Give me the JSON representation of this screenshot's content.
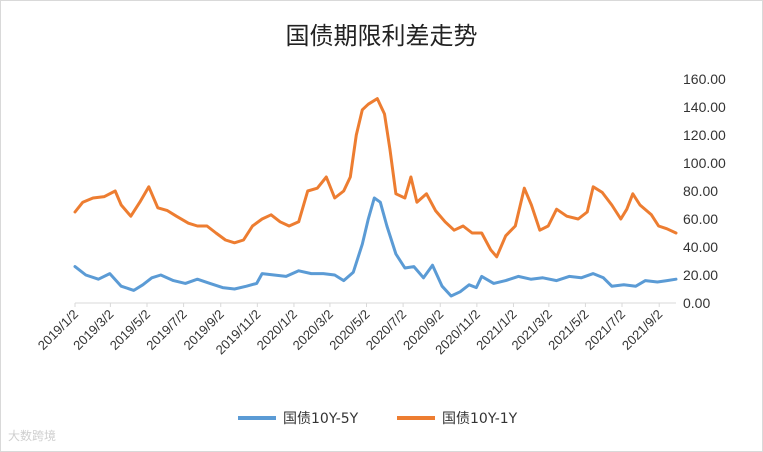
{
  "chart_data": {
    "type": "line",
    "title": "国债期限利差走势",
    "xlabel": "",
    "ylabel": "",
    "ylim": [
      0,
      160
    ],
    "y_ticks": [
      "0.00",
      "20.00",
      "40.00",
      "60.00",
      "80.00",
      "100.00",
      "120.00",
      "140.00",
      "160.00"
    ],
    "x_tick_labels": [
      "2019/1/2",
      "2019/3/2",
      "2019/5/2",
      "2019/7/2",
      "2019/9/2",
      "2019/11/2",
      "2020/1/2",
      "2020/3/2",
      "2020/5/2",
      "2020/7/2",
      "2020/9/2",
      "2020/11/2",
      "2021/1/2",
      "2021/3/2",
      "2021/5/2",
      "2021/7/2",
      "2021/9/2"
    ],
    "x_range": [
      "2019-01-02",
      "2021-09-30"
    ],
    "grid": false,
    "legend": "bottom",
    "series": [
      {
        "name": "国债10Y-5Y",
        "color": "#5b9bd5",
        "points": [
          [
            "2019-01-02",
            26
          ],
          [
            "2019-01-20",
            20
          ],
          [
            "2019-02-10",
            17
          ],
          [
            "2019-03-01",
            21
          ],
          [
            "2019-03-20",
            12
          ],
          [
            "2019-04-10",
            9
          ],
          [
            "2019-04-25",
            13
          ],
          [
            "2019-05-10",
            18
          ],
          [
            "2019-05-25",
            20
          ],
          [
            "2019-06-15",
            16
          ],
          [
            "2019-07-05",
            14
          ],
          [
            "2019-07-25",
            17
          ],
          [
            "2019-08-15",
            14
          ],
          [
            "2019-09-05",
            11
          ],
          [
            "2019-09-25",
            10
          ],
          [
            "2019-10-15",
            12
          ],
          [
            "2019-11-01",
            14
          ],
          [
            "2019-11-10",
            21
          ],
          [
            "2019-11-30",
            20
          ],
          [
            "2019-12-20",
            19
          ],
          [
            "2020-01-10",
            23
          ],
          [
            "2020-01-31",
            21
          ],
          [
            "2020-02-20",
            21
          ],
          [
            "2020-03-10",
            20
          ],
          [
            "2020-03-25",
            16
          ],
          [
            "2020-04-10",
            22
          ],
          [
            "2020-04-25",
            42
          ],
          [
            "2020-05-05",
            60
          ],
          [
            "2020-05-15",
            75
          ],
          [
            "2020-05-25",
            72
          ],
          [
            "2020-06-05",
            55
          ],
          [
            "2020-06-20",
            35
          ],
          [
            "2020-07-05",
            25
          ],
          [
            "2020-07-20",
            26
          ],
          [
            "2020-08-05",
            18
          ],
          [
            "2020-08-20",
            27
          ],
          [
            "2020-09-05",
            12
          ],
          [
            "2020-09-20",
            5
          ],
          [
            "2020-10-05",
            8
          ],
          [
            "2020-10-20",
            13
          ],
          [
            "2020-11-01",
            11
          ],
          [
            "2020-11-10",
            19
          ],
          [
            "2020-11-30",
            14
          ],
          [
            "2020-12-20",
            16
          ],
          [
            "2021-01-10",
            19
          ],
          [
            "2021-01-31",
            17
          ],
          [
            "2021-02-20",
            18
          ],
          [
            "2021-03-15",
            16
          ],
          [
            "2021-04-05",
            19
          ],
          [
            "2021-04-25",
            18
          ],
          [
            "2021-05-15",
            21
          ],
          [
            "2021-06-01",
            18
          ],
          [
            "2021-06-15",
            12
          ],
          [
            "2021-07-05",
            13
          ],
          [
            "2021-07-25",
            12
          ],
          [
            "2021-08-10",
            16
          ],
          [
            "2021-08-30",
            15
          ],
          [
            "2021-09-15",
            16
          ],
          [
            "2021-09-30",
            17
          ]
        ]
      },
      {
        "name": "国债10Y-1Y",
        "color": "#ed7d31",
        "points": [
          [
            "2019-01-02",
            65
          ],
          [
            "2019-01-15",
            72
          ],
          [
            "2019-02-01",
            75
          ],
          [
            "2019-02-20",
            76
          ],
          [
            "2019-03-10",
            80
          ],
          [
            "2019-03-20",
            70
          ],
          [
            "2019-04-05",
            62
          ],
          [
            "2019-04-20",
            72
          ],
          [
            "2019-05-05",
            83
          ],
          [
            "2019-05-20",
            68
          ],
          [
            "2019-06-05",
            66
          ],
          [
            "2019-06-20",
            62
          ],
          [
            "2019-07-10",
            57
          ],
          [
            "2019-07-25",
            55
          ],
          [
            "2019-08-10",
            55
          ],
          [
            "2019-08-25",
            50
          ],
          [
            "2019-09-10",
            45
          ],
          [
            "2019-09-25",
            43
          ],
          [
            "2019-10-10",
            45
          ],
          [
            "2019-10-25",
            55
          ],
          [
            "2019-11-10",
            60
          ],
          [
            "2019-11-25",
            63
          ],
          [
            "2019-12-10",
            58
          ],
          [
            "2019-12-25",
            55
          ],
          [
            "2020-01-10",
            58
          ],
          [
            "2020-01-25",
            80
          ],
          [
            "2020-02-10",
            82
          ],
          [
            "2020-02-25",
            90
          ],
          [
            "2020-03-10",
            75
          ],
          [
            "2020-03-25",
            80
          ],
          [
            "2020-04-05",
            90
          ],
          [
            "2020-04-15",
            120
          ],
          [
            "2020-04-25",
            138
          ],
          [
            "2020-05-05",
            142
          ],
          [
            "2020-05-20",
            146
          ],
          [
            "2020-06-01",
            135
          ],
          [
            "2020-06-10",
            110
          ],
          [
            "2020-06-20",
            78
          ],
          [
            "2020-07-05",
            75
          ],
          [
            "2020-07-15",
            90
          ],
          [
            "2020-07-25",
            72
          ],
          [
            "2020-08-10",
            78
          ],
          [
            "2020-08-25",
            66
          ],
          [
            "2020-09-10",
            58
          ],
          [
            "2020-09-25",
            52
          ],
          [
            "2020-10-10",
            55
          ],
          [
            "2020-10-25",
            50
          ],
          [
            "2020-11-10",
            50
          ],
          [
            "2020-11-25",
            38
          ],
          [
            "2020-12-05",
            33
          ],
          [
            "2020-12-20",
            48
          ],
          [
            "2021-01-05",
            55
          ],
          [
            "2021-01-20",
            82
          ],
          [
            "2021-02-01",
            70
          ],
          [
            "2021-02-15",
            52
          ],
          [
            "2021-03-01",
            55
          ],
          [
            "2021-03-15",
            67
          ],
          [
            "2021-04-01",
            62
          ],
          [
            "2021-04-20",
            60
          ],
          [
            "2021-05-05",
            65
          ],
          [
            "2021-05-15",
            83
          ],
          [
            "2021-05-30",
            79
          ],
          [
            "2021-06-15",
            70
          ],
          [
            "2021-06-30",
            60
          ],
          [
            "2021-07-10",
            67
          ],
          [
            "2021-07-20",
            78
          ],
          [
            "2021-08-01",
            70
          ],
          [
            "2021-08-20",
            63
          ],
          [
            "2021-09-01",
            55
          ],
          [
            "2021-09-15",
            53
          ],
          [
            "2021-09-30",
            50
          ]
        ]
      }
    ]
  },
  "watermark": "大数跨境"
}
